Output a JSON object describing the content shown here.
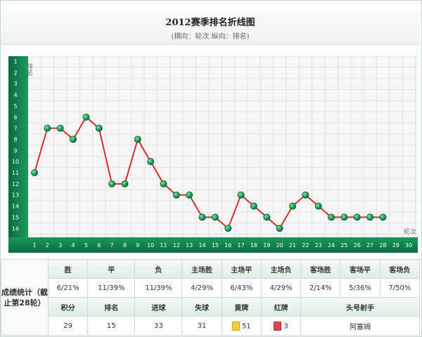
{
  "header": {
    "title": "2012赛季排名折线图",
    "subtitle": "(横向：轮次 纵向：排名)"
  },
  "chart_data": {
    "type": "line",
    "title": "2012赛季排名折线图",
    "xlabel": "轮次",
    "ylabel": "排名",
    "x": [
      1,
      2,
      3,
      4,
      5,
      6,
      7,
      8,
      9,
      10,
      11,
      12,
      13,
      14,
      15,
      16,
      17,
      18,
      19,
      20,
      21,
      22,
      23,
      24,
      25,
      26,
      27,
      28
    ],
    "series": [
      {
        "values": [
          11,
          7,
          7,
          8,
          6,
          7,
          12,
          12,
          8,
          10,
          12,
          13,
          13,
          15,
          15,
          16,
          13,
          14,
          15,
          16,
          14,
          13,
          14,
          15,
          15,
          15,
          15,
          15
        ]
      }
    ],
    "x_ticks": [
      "1",
      "2",
      "3",
      "4",
      "5",
      "6",
      "7",
      "8",
      "9",
      "10",
      "11",
      "12",
      "13",
      "14",
      "15",
      "16",
      "17",
      "18",
      "19",
      "20",
      "21",
      "22",
      "23",
      "24",
      "25",
      "26",
      "27",
      "28",
      "29",
      "30"
    ],
    "y_ticks": [
      "1",
      "2",
      "3",
      "4",
      "5",
      "6",
      "7",
      "8",
      "9",
      "10",
      "11",
      "12",
      "13",
      "14",
      "15",
      "16"
    ],
    "xlim": [
      1,
      30
    ],
    "ylim": [
      1,
      16
    ],
    "y_inverted": true,
    "grid": true,
    "colors": {
      "line": "#d32f2f",
      "marker": "#1ea05a",
      "axis": "#0e7a4a"
    }
  },
  "stats": {
    "side_label": "成绩统计（截止第28轮）",
    "row1_headers": [
      "胜",
      "平",
      "负",
      "主场胜",
      "主场平",
      "主场负",
      "客场胜",
      "客场平",
      "客场负"
    ],
    "row1_values": [
      "6/21%",
      "11/39%",
      "11/39%",
      "4/29%",
      "6/43%",
      "4/29%",
      "2/14%",
      "5/36%",
      "7/50%"
    ],
    "row2_headers": [
      "积分",
      "排名",
      "进球",
      "失球",
      "黄牌",
      "红牌",
      "头号射手"
    ],
    "row2_values": [
      "29",
      "15",
      "33",
      "31",
      "51",
      "3",
      "阿塞姆"
    ],
    "card_colors": {
      "yellow": "#f2cc3c",
      "red": "#d94a4a"
    }
  }
}
